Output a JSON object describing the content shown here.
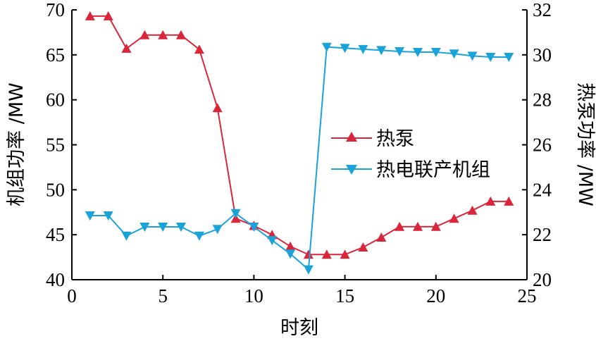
{
  "chart_data": {
    "type": "line",
    "xlabel": "时刻",
    "ylabel_left": "机组功率 /MW",
    "ylabel_right": "热泵功率 /MW",
    "xlim": [
      0,
      25
    ],
    "ylim_left": [
      40,
      70
    ],
    "ylim_right": [
      20,
      32
    ],
    "x_ticks": [
      0,
      5,
      10,
      15,
      20,
      25
    ],
    "y_ticks_left": [
      40,
      45,
      50,
      55,
      60,
      65,
      70
    ],
    "y_ticks_right": [
      20,
      22,
      24,
      26,
      28,
      30,
      32
    ],
    "grid": false,
    "legend_position": "center-right",
    "x": [
      1,
      2,
      3,
      4,
      5,
      6,
      7,
      8,
      9,
      10,
      11,
      12,
      13,
      14,
      15,
      16,
      17,
      18,
      19,
      20,
      21,
      22,
      23,
      24
    ],
    "series": [
      {
        "name": "热泵",
        "axis": "left",
        "color": "#d9263a",
        "marker": "triangle-up",
        "values": [
          69.3,
          69.3,
          65.7,
          67.2,
          67.2,
          67.2,
          65.6,
          59.1,
          46.8,
          46.0,
          45.0,
          43.7,
          42.8,
          42.8,
          42.8,
          43.6,
          44.7,
          45.9,
          45.9,
          45.9,
          46.8,
          47.7,
          48.7,
          48.7
        ]
      },
      {
        "name": "热电联产机组",
        "axis": "right",
        "color": "#1aa3d9",
        "marker": "triangle-down",
        "values": [
          22.85,
          22.85,
          21.95,
          22.35,
          22.35,
          22.35,
          21.95,
          22.25,
          22.95,
          22.35,
          21.75,
          21.15,
          20.45,
          30.35,
          30.3,
          30.25,
          30.2,
          30.15,
          30.12,
          30.12,
          30.05,
          29.95,
          29.9,
          29.9
        ]
      }
    ]
  }
}
